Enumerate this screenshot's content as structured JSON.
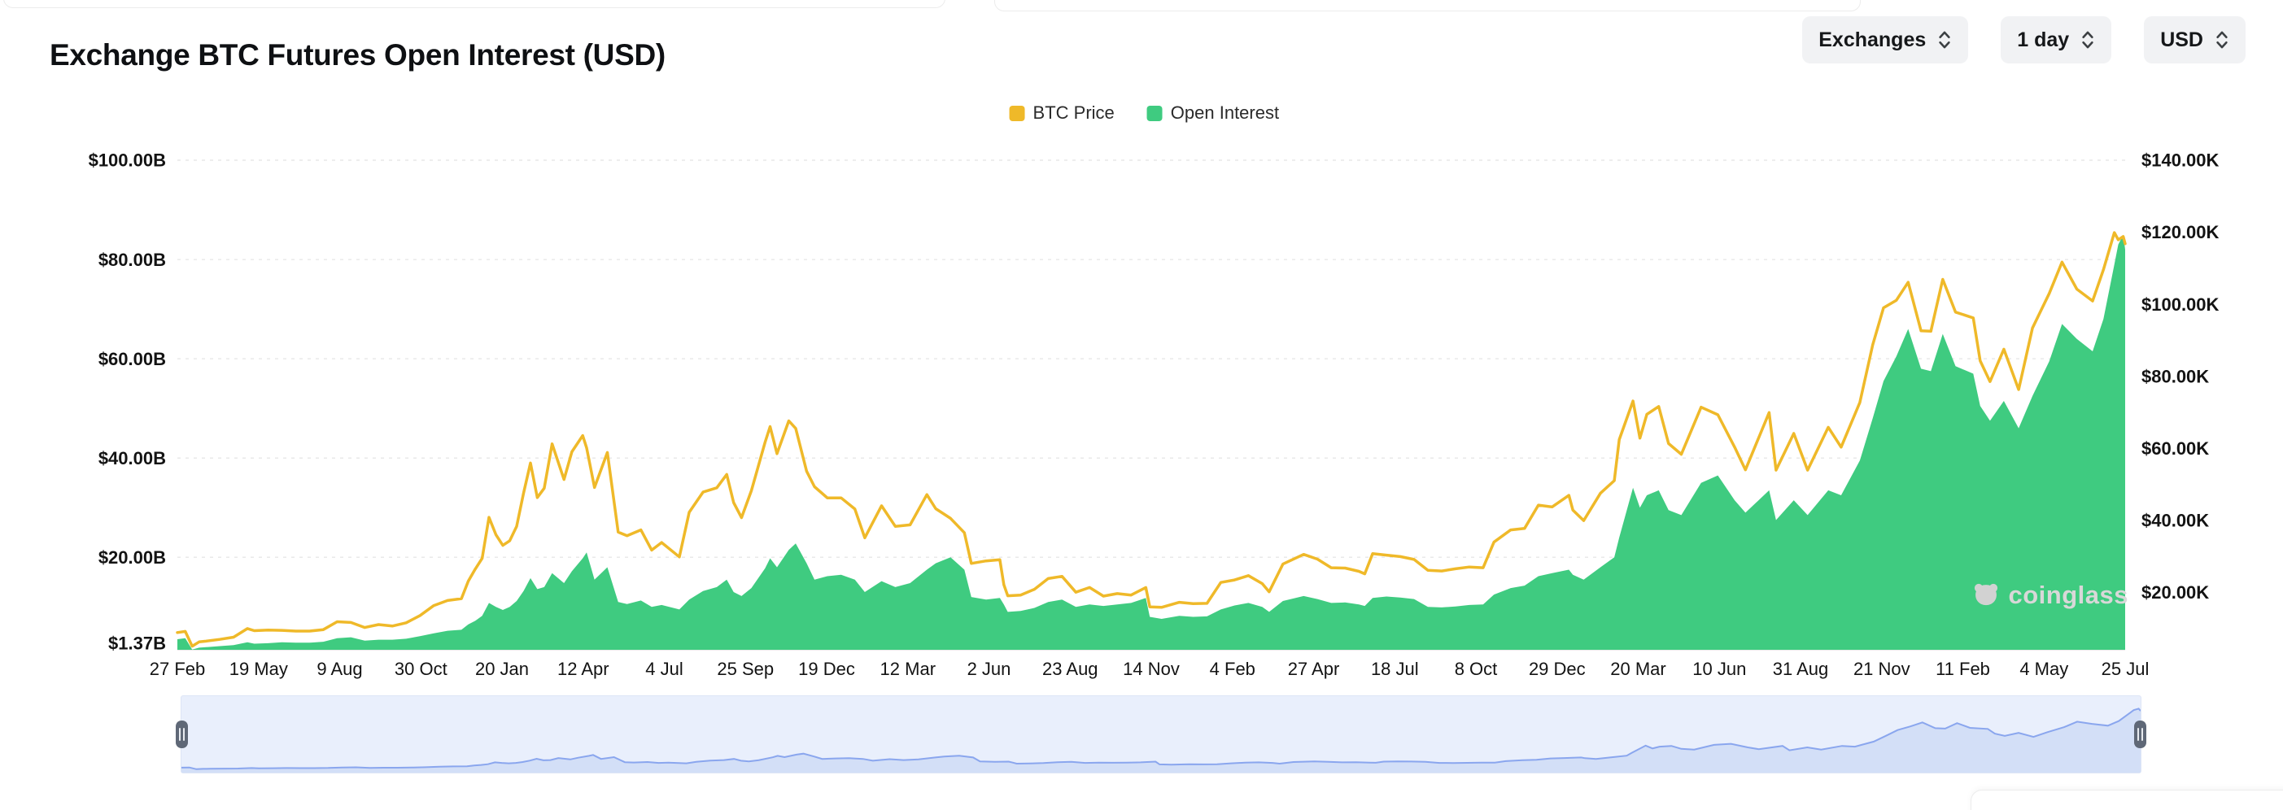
{
  "page": {
    "title": "Exchange BTC Futures Open Interest (USD)"
  },
  "controls": {
    "exchanges": "Exchanges",
    "interval": "1 day",
    "currency": "USD"
  },
  "legend": [
    {
      "label": "BTC Price",
      "color": "#EFB929"
    },
    {
      "label": "Open Interest",
      "color": "#3FCB80"
    }
  ],
  "watermark": "coinglass",
  "navigator": {
    "bg": "#e9effc",
    "fill": "#d3dff7",
    "line": "#8aa6ee"
  },
  "chart_data": {
    "type": "area",
    "title": "Exchange BTC Futures Open Interest (USD)",
    "legend_position": "top-center",
    "grid": "horizontal-dashed",
    "x_axis": {
      "labels": [
        "27 Feb",
        "19 May",
        "9 Aug",
        "30 Oct",
        "20 Jan",
        "12 Apr",
        "4 Jul",
        "25 Sep",
        "19 Dec",
        "12 Mar",
        "2 Jun",
        "23 Aug",
        "14 Nov",
        "4 Feb",
        "27 Apr",
        "18 Jul",
        "8 Oct",
        "29 Dec",
        "20 Mar",
        "10 Jun",
        "31 Aug",
        "21 Nov",
        "11 Feb",
        "4 May",
        "25 Jul"
      ]
    },
    "left_axis": {
      "unit": "USD billions (Open Interest)",
      "range": [
        1.37,
        100
      ],
      "ticks": [
        {
          "label": "$100.00B",
          "value": 100
        },
        {
          "label": "$80.00B",
          "value": 80
        },
        {
          "label": "$60.00B",
          "value": 60
        },
        {
          "label": "$40.00B",
          "value": 40
        },
        {
          "label": "$20.00B",
          "value": 20
        },
        {
          "label": "$1.37B",
          "value": 1.37
        }
      ]
    },
    "right_axis": {
      "unit": "USD thousands (BTC Price)",
      "range": [
        4,
        140
      ],
      "ticks": [
        {
          "label": "$140.00K",
          "value": 140
        },
        {
          "label": "$120.00K",
          "value": 120
        },
        {
          "label": "$100.00K",
          "value": 100
        },
        {
          "label": "$80.00K",
          "value": 80
        },
        {
          "label": "$60.00K",
          "value": 60
        },
        {
          "label": "$40.00K",
          "value": 40
        },
        {
          "label": "$20.00K",
          "value": 20
        }
      ]
    },
    "series": [
      {
        "name": "BTC Price",
        "type": "line",
        "axis": "right",
        "color": "#EFB929",
        "unit": "USD K"
      },
      {
        "name": "Open Interest",
        "type": "area",
        "axis": "left",
        "color": "#3FCB80",
        "unit": "USD B"
      }
    ],
    "points": [
      [
        "2020-02-27",
        8.8,
        3.5
      ],
      [
        "2020-03-06",
        9.1,
        3.7
      ],
      [
        "2020-03-13",
        5.0,
        1.4
      ],
      [
        "2020-03-20",
        6.2,
        1.8
      ],
      [
        "2020-03-27",
        6.4,
        1.9
      ],
      [
        "2020-04-10",
        6.9,
        2.1
      ],
      [
        "2020-04-24",
        7.5,
        2.3
      ],
      [
        "2020-05-08",
        9.9,
        2.9
      ],
      [
        "2020-05-15",
        9.3,
        2.6
      ],
      [
        "2020-05-29",
        9.5,
        2.7
      ],
      [
        "2020-06-12",
        9.4,
        2.9
      ],
      [
        "2020-06-26",
        9.2,
        2.8
      ],
      [
        "2020-07-10",
        9.2,
        2.8
      ],
      [
        "2020-07-24",
        9.6,
        3.0
      ],
      [
        "2020-08-07",
        11.8,
        3.7
      ],
      [
        "2020-08-21",
        11.6,
        3.9
      ],
      [
        "2020-09-04",
        10.2,
        3.2
      ],
      [
        "2020-09-18",
        11.0,
        3.4
      ],
      [
        "2020-10-02",
        10.6,
        3.4
      ],
      [
        "2020-10-16",
        11.5,
        3.6
      ],
      [
        "2020-10-30",
        13.5,
        4.1
      ],
      [
        "2020-11-13",
        16.3,
        4.7
      ],
      [
        "2020-11-27",
        17.7,
        5.2
      ],
      [
        "2020-12-11",
        18.2,
        5.4
      ],
      [
        "2020-12-18",
        23.1,
        6.5
      ],
      [
        "2020-12-25",
        26.4,
        7.2
      ],
      [
        "2021-01-01",
        29.4,
        8.2
      ],
      [
        "2021-01-08",
        40.8,
        10.8
      ],
      [
        "2021-01-15",
        36.0,
        10.0
      ],
      [
        "2021-01-22",
        33.0,
        9.4
      ],
      [
        "2021-01-29",
        34.3,
        10.0
      ],
      [
        "2021-02-05",
        38.3,
        11.2
      ],
      [
        "2021-02-12",
        47.5,
        13.2
      ],
      [
        "2021-02-19",
        55.9,
        15.8
      ],
      [
        "2021-02-26",
        46.3,
        13.6
      ],
      [
        "2021-03-05",
        48.9,
        14.0
      ],
      [
        "2021-03-13",
        61.2,
        16.8
      ],
      [
        "2021-03-25",
        51.3,
        14.8
      ],
      [
        "2021-04-02",
        59.0,
        17.2
      ],
      [
        "2021-04-13",
        63.5,
        19.8
      ],
      [
        "2021-04-17",
        60.1,
        21.0
      ],
      [
        "2021-04-25",
        49.1,
        15.5
      ],
      [
        "2021-05-08",
        58.8,
        18.0
      ],
      [
        "2021-05-19",
        36.7,
        11.0
      ],
      [
        "2021-05-28",
        35.7,
        10.6
      ],
      [
        "2021-06-11",
        37.3,
        11.3
      ],
      [
        "2021-06-22",
        31.7,
        10.0
      ],
      [
        "2021-07-02",
        33.8,
        10.4
      ],
      [
        "2021-07-20",
        29.8,
        9.5
      ],
      [
        "2021-07-30",
        42.2,
        11.5
      ],
      [
        "2021-08-13",
        47.8,
        13.2
      ],
      [
        "2021-08-27",
        49.0,
        14.0
      ],
      [
        "2021-09-06",
        52.7,
        15.5
      ],
      [
        "2021-09-13",
        44.9,
        13.0
      ],
      [
        "2021-09-21",
        40.7,
        12.2
      ],
      [
        "2021-10-01",
        48.2,
        13.8
      ],
      [
        "2021-10-15",
        61.7,
        17.8
      ],
      [
        "2021-10-20",
        66.0,
        19.8
      ],
      [
        "2021-10-27",
        58.5,
        18.0
      ],
      [
        "2021-11-08",
        67.6,
        21.5
      ],
      [
        "2021-11-15",
        65.5,
        22.8
      ],
      [
        "2021-11-26",
        53.6,
        18.8
      ],
      [
        "2021-12-04",
        49.3,
        15.5
      ],
      [
        "2021-12-17",
        46.2,
        16.2
      ],
      [
        "2021-12-31",
        46.2,
        16.5
      ],
      [
        "2022-01-14",
        43.1,
        15.5
      ],
      [
        "2022-01-24",
        35.1,
        13.0
      ],
      [
        "2022-02-10",
        44.0,
        15.2
      ],
      [
        "2022-02-24",
        38.3,
        14.0
      ],
      [
        "2022-03-11",
        38.7,
        14.8
      ],
      [
        "2022-03-28",
        47.1,
        17.5
      ],
      [
        "2022-04-06",
        43.2,
        18.8
      ],
      [
        "2022-04-21",
        40.5,
        20.0
      ],
      [
        "2022-05-05",
        36.5,
        17.5
      ],
      [
        "2022-05-12",
        28.0,
        12.0
      ],
      [
        "2022-05-27",
        28.7,
        11.5
      ],
      [
        "2022-06-10",
        29.0,
        11.8
      ],
      [
        "2022-06-14",
        22.1,
        10.5
      ],
      [
        "2022-06-18",
        19.0,
        9.0
      ],
      [
        "2022-07-01",
        19.2,
        9.2
      ],
      [
        "2022-07-15",
        20.8,
        9.8
      ],
      [
        "2022-07-29",
        23.8,
        11.0
      ],
      [
        "2022-08-12",
        24.4,
        11.5
      ],
      [
        "2022-08-26",
        20.0,
        10.0
      ],
      [
        "2022-09-09",
        21.3,
        10.5
      ],
      [
        "2022-09-23",
        18.9,
        10.2
      ],
      [
        "2022-10-07",
        19.6,
        10.5
      ],
      [
        "2022-10-21",
        19.2,
        10.8
      ],
      [
        "2022-11-05",
        21.3,
        11.8
      ],
      [
        "2022-11-09",
        15.9,
        8.0
      ],
      [
        "2022-11-21",
        15.8,
        7.6
      ],
      [
        "2022-12-09",
        17.2,
        8.2
      ],
      [
        "2022-12-23",
        16.8,
        8.0
      ],
      [
        "2023-01-06",
        16.9,
        8.1
      ],
      [
        "2023-01-20",
        22.7,
        9.5
      ],
      [
        "2023-02-03",
        23.4,
        10.3
      ],
      [
        "2023-02-17",
        24.6,
        10.8
      ],
      [
        "2023-03-03",
        22.4,
        10.0
      ],
      [
        "2023-03-10",
        20.1,
        9.0
      ],
      [
        "2023-03-24",
        27.8,
        11.2
      ],
      [
        "2023-04-14",
        30.5,
        12.2
      ],
      [
        "2023-04-28",
        29.2,
        11.6
      ],
      [
        "2023-05-12",
        26.8,
        10.8
      ],
      [
        "2023-05-26",
        26.7,
        10.9
      ],
      [
        "2023-06-09",
        25.8,
        10.5
      ],
      [
        "2023-06-15",
        25.1,
        10.2
      ],
      [
        "2023-06-23",
        30.7,
        11.8
      ],
      [
        "2023-07-07",
        30.3,
        12.1
      ],
      [
        "2023-07-21",
        29.9,
        11.9
      ],
      [
        "2023-08-04",
        29.1,
        11.6
      ],
      [
        "2023-08-18",
        26.1,
        10.0
      ],
      [
        "2023-09-01",
        25.9,
        9.9
      ],
      [
        "2023-09-15",
        26.5,
        10.1
      ],
      [
        "2023-09-29",
        27.0,
        10.4
      ],
      [
        "2023-10-13",
        26.8,
        10.5
      ],
      [
        "2023-10-24",
        33.9,
        12.5
      ],
      [
        "2023-11-10",
        37.3,
        13.8
      ],
      [
        "2023-11-24",
        37.7,
        14.3
      ],
      [
        "2023-12-08",
        44.2,
        16.2
      ],
      [
        "2023-12-22",
        43.7,
        16.8
      ],
      [
        "2024-01-08",
        46.9,
        17.5
      ],
      [
        "2024-01-12",
        42.8,
        16.5
      ],
      [
        "2024-01-23",
        39.9,
        15.5
      ],
      [
        "2024-02-09",
        47.5,
        18.0
      ],
      [
        "2024-02-23",
        51.0,
        20.0
      ],
      [
        "2024-02-28",
        62.4,
        24.0
      ],
      [
        "2024-03-13",
        73.1,
        34.0
      ],
      [
        "2024-03-20",
        62.8,
        30.0
      ],
      [
        "2024-03-27",
        69.4,
        32.5
      ],
      [
        "2024-04-08",
        71.6,
        33.5
      ],
      [
        "2024-04-18",
        61.3,
        29.5
      ],
      [
        "2024-05-01",
        58.3,
        28.5
      ],
      [
        "2024-05-21",
        71.4,
        35.0
      ],
      [
        "2024-06-07",
        69.3,
        36.5
      ],
      [
        "2024-06-24",
        60.3,
        31.5
      ],
      [
        "2024-07-05",
        54.0,
        29.0
      ],
      [
        "2024-07-29",
        69.9,
        33.5
      ],
      [
        "2024-08-05",
        53.9,
        27.5
      ],
      [
        "2024-08-23",
        64.1,
        31.5
      ],
      [
        "2024-09-06",
        53.9,
        28.5
      ],
      [
        "2024-09-27",
        65.8,
        33.5
      ],
      [
        "2024-10-10",
        60.3,
        32.5
      ],
      [
        "2024-10-29",
        72.7,
        39.5
      ],
      [
        "2024-11-11",
        88.7,
        48.0
      ],
      [
        "2024-11-22",
        99.0,
        55.5
      ],
      [
        "2024-12-05",
        101.1,
        60.5
      ],
      [
        "2024-12-17",
        106.1,
        66.0
      ],
      [
        "2024-12-30",
        92.6,
        58.0
      ],
      [
        "2025-01-09",
        92.5,
        57.5
      ],
      [
        "2025-01-21",
        106.9,
        65.0
      ],
      [
        "2025-02-03",
        97.8,
        58.5
      ],
      [
        "2025-02-21",
        96.2,
        57.0
      ],
      [
        "2025-02-28",
        84.3,
        50.5
      ],
      [
        "2025-03-10",
        78.5,
        47.5
      ],
      [
        "2025-03-24",
        87.5,
        51.5
      ],
      [
        "2025-04-08",
        76.3,
        46.0
      ],
      [
        "2025-04-22",
        93.4,
        52.5
      ],
      [
        "2025-05-09",
        103.0,
        59.5
      ],
      [
        "2025-05-22",
        111.7,
        67.0
      ],
      [
        "2025-06-06",
        104.2,
        64.0
      ],
      [
        "2025-06-22",
        100.9,
        61.5
      ],
      [
        "2025-07-03",
        109.6,
        68.0
      ],
      [
        "2025-07-14",
        119.9,
        79.0
      ],
      [
        "2025-07-18",
        117.9,
        83.0
      ],
      [
        "2025-07-23",
        118.8,
        85.0
      ],
      [
        "2025-07-25",
        116.8,
        82.0
      ]
    ]
  }
}
